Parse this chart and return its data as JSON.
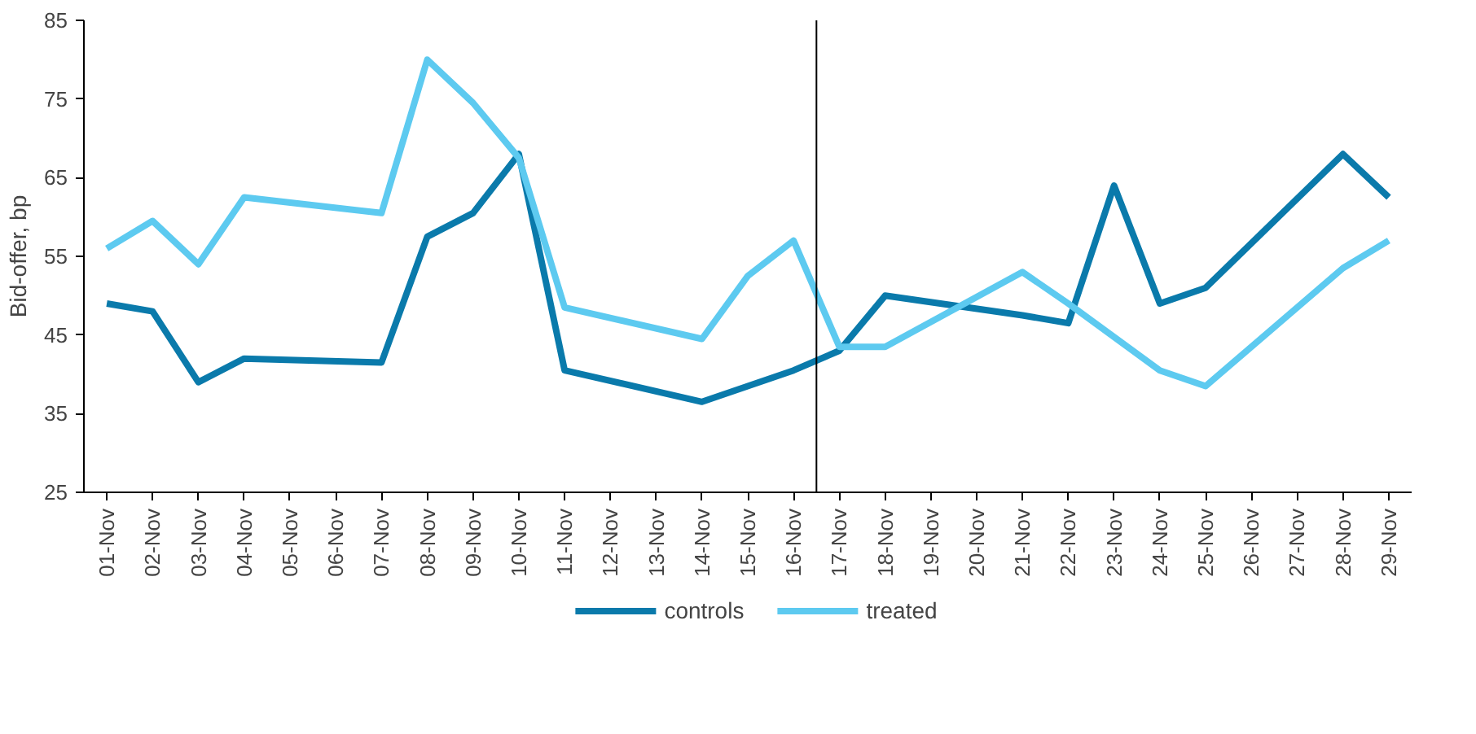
{
  "chart_data": {
    "type": "line",
    "ylabel": "Bid-offer, bp",
    "categories": [
      "01-Nov",
      "02-Nov",
      "03-Nov",
      "04-Nov",
      "05-Nov",
      "06-Nov",
      "07-Nov",
      "08-Nov",
      "09-Nov",
      "10-Nov",
      "11-Nov",
      "12-Nov",
      "13-Nov",
      "14-Nov",
      "15-Nov",
      "16-Nov",
      "17-Nov",
      "18-Nov",
      "19-Nov",
      "20-Nov",
      "21-Nov",
      "22-Nov",
      "23-Nov",
      "24-Nov",
      "25-Nov",
      "26-Nov",
      "27-Nov",
      "28-Nov",
      "29-Nov"
    ],
    "ylim": [
      25,
      85
    ],
    "yticks": [
      25,
      35,
      45,
      55,
      65,
      75,
      85
    ],
    "series": [
      {
        "name": "controls",
        "color": "#0a7aab",
        "values": [
          49,
          48,
          39,
          42,
          null,
          null,
          41.5,
          57.5,
          60.5,
          68,
          40.5,
          null,
          null,
          36.5,
          38.5,
          40.5,
          43,
          50,
          null,
          null,
          47.5,
          46.5,
          64,
          49,
          51,
          null,
          null,
          68,
          62.5
        ]
      },
      {
        "name": "treated",
        "color": "#5dcaf0",
        "values": [
          56,
          59.5,
          54,
          62.5,
          null,
          null,
          60.5,
          80,
          74.5,
          67.5,
          48.5,
          null,
          null,
          44.5,
          52.5,
          57,
          43.5,
          43.5,
          null,
          null,
          53,
          49,
          null,
          40.5,
          38.5,
          null,
          null,
          53.5,
          57
        ]
      }
    ],
    "legend": "bottom"
  }
}
